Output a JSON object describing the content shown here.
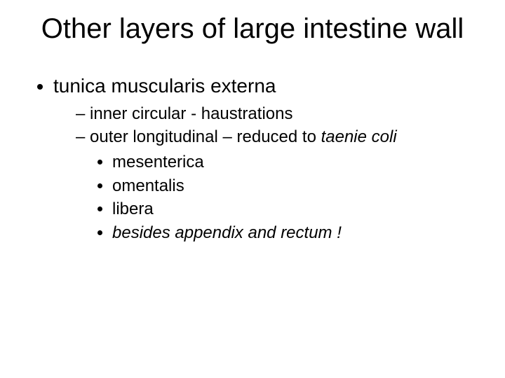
{
  "title": "Other layers of large intestine wall",
  "b1": "tunica muscularis externa",
  "b1_1": "inner circular - haustrations",
  "b1_2_prefix": "outer longitudinal – reduced to ",
  "b1_2_italic": "taenie coli",
  "b1_2_1": "mesenterica",
  "b1_2_2": "omentalis",
  "b1_2_3": "libera",
  "b1_2_4": "besides appendix and rectum !"
}
